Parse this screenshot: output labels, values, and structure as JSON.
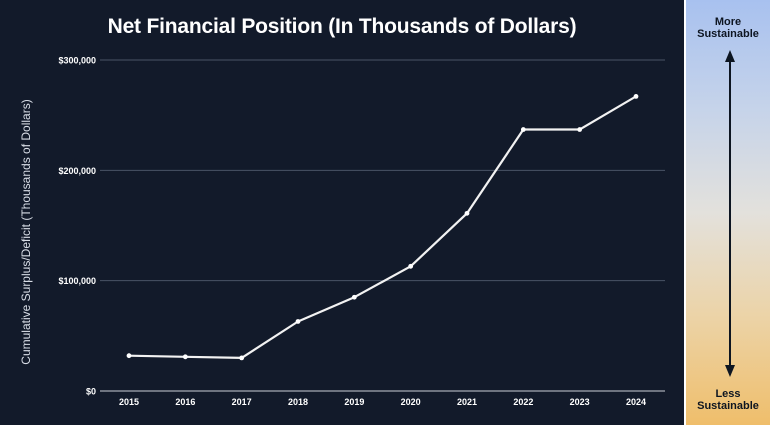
{
  "chart_data": {
    "type": "line",
    "title": "Net Financial Position (In Thousands of Dollars)",
    "xlabel": "",
    "ylabel": "Cumulative Surplus/Deficit (Thousands of Dollars)",
    "x": [
      "2015",
      "2016",
      "2017",
      "2018",
      "2019",
      "2020",
      "2021",
      "2022",
      "2023",
      "2024"
    ],
    "values": [
      32000,
      31000,
      30000,
      63000,
      85000,
      113000,
      161000,
      237000,
      237000,
      267000
    ],
    "ylim": [
      0,
      300000
    ],
    "yticks": [
      0,
      100000,
      200000,
      300000
    ],
    "ytick_labels": [
      "$0",
      "$100,000",
      "$200,000",
      "$300,000"
    ],
    "grid": true,
    "colors": {
      "background": "#121a2a",
      "line": "#f2f2f2",
      "grid": "#4a5466",
      "text": "#ffffff"
    }
  },
  "sustainability": {
    "top_label_line1": "More",
    "top_label_line2": "Sustainable",
    "bottom_label_line1": "Less",
    "bottom_label_line2": "Sustainable"
  }
}
